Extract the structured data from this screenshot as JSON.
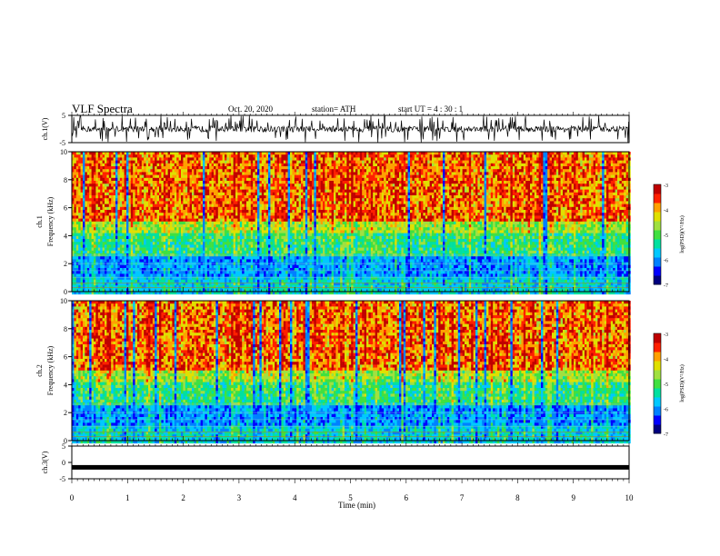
{
  "header": {
    "title": "VLF Spectra",
    "date": "Oct. 20, 2020",
    "station": "station= ATH",
    "start": "start  UT =   4 : 30 : 1"
  },
  "chart_data": [
    {
      "type": "line",
      "ylabel": "ch.1(V)",
      "ylim": [
        -5,
        5
      ],
      "yticks": [
        "5",
        "-5"
      ],
      "xlim": [
        0,
        10
      ],
      "description_values": "noisy waveform ranging roughly -5 to 5 V, baseline near 0 V"
    },
    {
      "type": "heatmap",
      "ylabel_top": "ch.1",
      "ylabel": "Frequency  (kHz)",
      "ylim": [
        0,
        10
      ],
      "yticks": [
        "0",
        "2",
        "4",
        "6",
        "8",
        "10"
      ],
      "xlim": [
        0,
        10
      ],
      "colorbar": {
        "label": "log(PSD)(V²/Hz)",
        "range": [
          -7,
          -3
        ],
        "ticks": [
          "-3",
          "-4",
          "-5",
          "-6",
          "-7"
        ]
      }
    },
    {
      "type": "heatmap",
      "ylabel_top": "ch.2",
      "ylabel": "Frequency  (kHz)",
      "ylim": [
        0,
        10
      ],
      "yticks": [
        "0",
        "2",
        "4",
        "6",
        "8",
        "10"
      ],
      "xlim": [
        0,
        10
      ],
      "colorbar": {
        "label": "log(PSD)(V²/Hz)",
        "range": [
          -7,
          -3
        ],
        "ticks": [
          "-3",
          "-4",
          "-5",
          "-6",
          "-7"
        ]
      }
    },
    {
      "type": "line",
      "ylabel": "ch.3(V)",
      "ylim": [
        -5,
        5
      ],
      "yticks": [
        "5",
        "0",
        "-5"
      ],
      "xlim": [
        0,
        10
      ],
      "xlabel": "Time  (min)",
      "xticks": [
        "0",
        "1",
        "2",
        "3",
        "4",
        "5",
        "6",
        "7",
        "8",
        "9",
        "10"
      ],
      "values_constant": -1.5
    }
  ],
  "colors": {
    "spectrogram": [
      "#000080",
      "#0000ff",
      "#0080ff",
      "#00c8ff",
      "#00e0a0",
      "#40e040",
      "#a0e040",
      "#e0e000",
      "#ffa000",
      "#ff2000",
      "#c00000"
    ]
  }
}
